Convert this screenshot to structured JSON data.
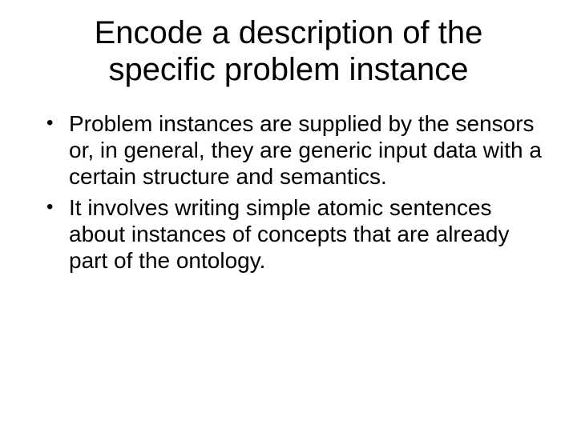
{
  "slide": {
    "title": "Encode a description of the specific problem instance",
    "bullets": [
      "Problem instances are supplied by the sensors or, in general, they are generic input data with a certain structure and semantics.",
      "It involves writing simple atomic sentences about instances of concepts that are already part of the ontology."
    ],
    "background_color": "#ffffff",
    "text_color": "#000000",
    "title_fontsize": 40,
    "body_fontsize": 28,
    "font_family": "Arial"
  }
}
